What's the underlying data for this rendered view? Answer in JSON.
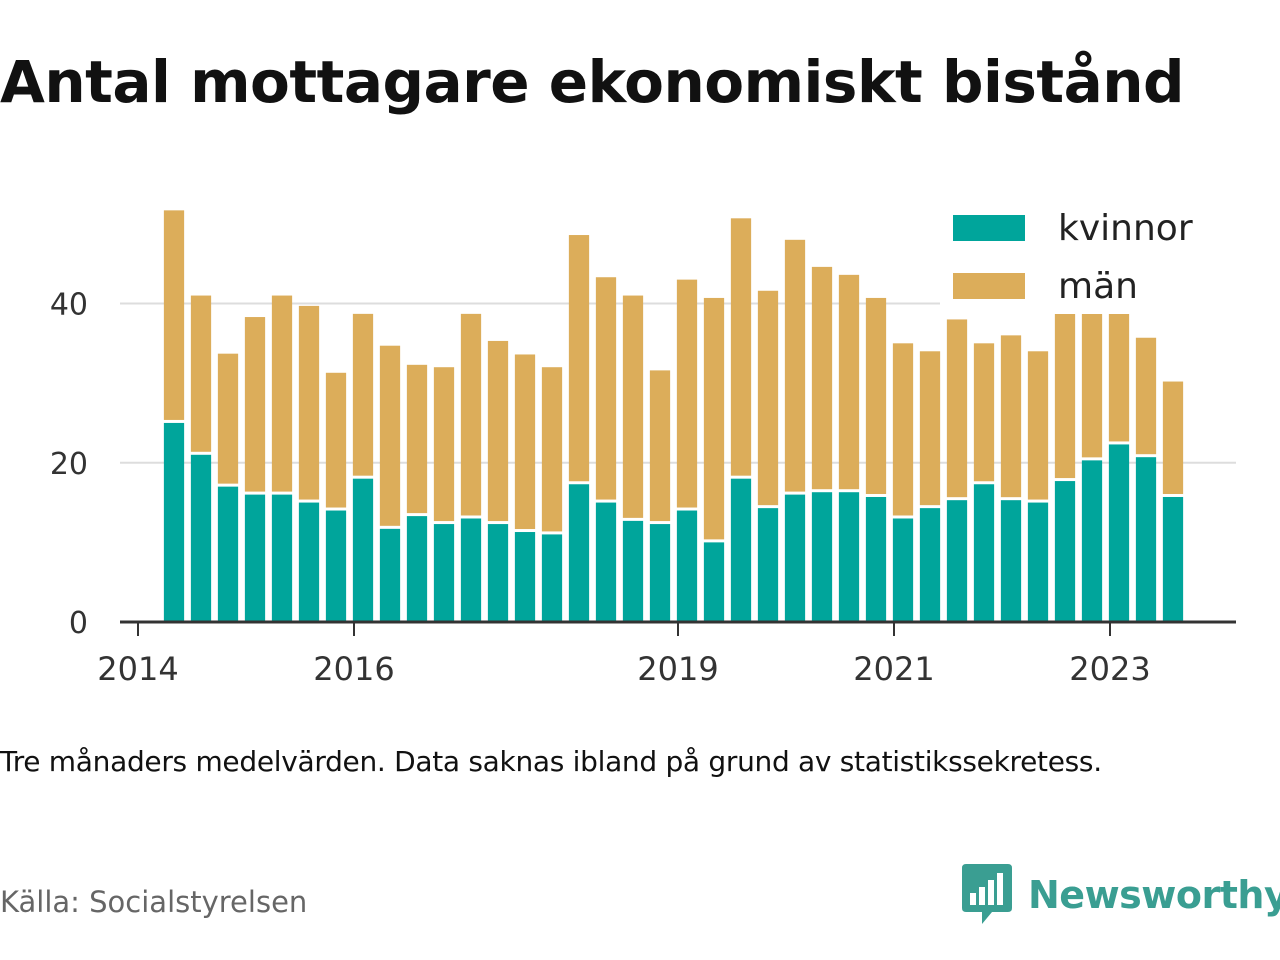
{
  "title": "Antal mottagare ekonomiskt bistånd",
  "note": "Tre månaders medelvärden. Data saknas ibland på grund av statistikssekretess.",
  "source": "Källa: Socialstyrelsen",
  "brand": {
    "name": "Newsworthy",
    "logo_icon": "newsworthy-bar-chart-icon",
    "color": "#3a9e92"
  },
  "colors": {
    "kvinnor": "#00a59b",
    "man": "#dcad5a",
    "grid": "#dddddd",
    "axis": "#333333"
  },
  "chart_data": {
    "type": "bar",
    "stacked": true,
    "title": "Antal mottagare ekonomiskt bistånd",
    "xlabel": "",
    "ylabel": "",
    "ylim": [
      0,
      53
    ],
    "yticks": [
      0,
      20,
      40
    ],
    "grid": true,
    "legend_position": "top-right",
    "xlim": [
      "2013-11",
      "2024-03"
    ],
    "xticks": [
      {
        "label": "2014",
        "date": "2014-01"
      },
      {
        "label": "2016",
        "date": "2016-01"
      },
      {
        "label": "2019",
        "date": "2019-01"
      },
      {
        "label": "2021",
        "date": "2021-01"
      },
      {
        "label": "2023",
        "date": "2023-01"
      }
    ],
    "categories": [
      "2014-04",
      "2014-07",
      "2014-10",
      "2015-01",
      "2015-04",
      "2015-07",
      "2015-10",
      "2016-01",
      "2016-04",
      "2016-07",
      "2016-10",
      "2017-01",
      "2017-04",
      "2017-07",
      "2017-10",
      "2018-01",
      "2018-04",
      "2018-07",
      "2018-10",
      "2019-01",
      "2019-04",
      "2019-07",
      "2019-10",
      "2020-01",
      "2020-04",
      "2020-07",
      "2020-10",
      "2021-01",
      "2021-04",
      "2021-07",
      "2021-10",
      "2022-01",
      "2022-04",
      "2022-07",
      "2022-10",
      "2023-01",
      "2023-04",
      "2023-07"
    ],
    "series": [
      {
        "name": "kvinnor",
        "values": [
          25,
          21,
          17,
          16,
          16,
          15,
          14,
          18,
          11.7,
          13.3,
          12.3,
          13,
          12.3,
          11.3,
          11,
          17.3,
          15,
          12.7,
          12.3,
          14,
          10,
          18,
          14.3,
          16,
          16.3,
          16.3,
          15.7,
          13,
          14.3,
          15.3,
          17.3,
          15.3,
          15,
          17.7,
          20.3,
          22.3,
          20.7,
          15.7
        ]
      },
      {
        "name": "män",
        "values": [
          26.7,
          20,
          16.7,
          22.3,
          25,
          24.7,
          17.3,
          20.7,
          23,
          19,
          19.7,
          25.7,
          23,
          22.3,
          21,
          31.3,
          28.3,
          28.3,
          19.3,
          29,
          30.7,
          32.7,
          27.3,
          32,
          28.3,
          27.3,
          25,
          22,
          19.7,
          22.7,
          17.7,
          20.7,
          19,
          21.7,
          19.3,
          17,
          15,
          14.5
        ]
      }
    ]
  }
}
